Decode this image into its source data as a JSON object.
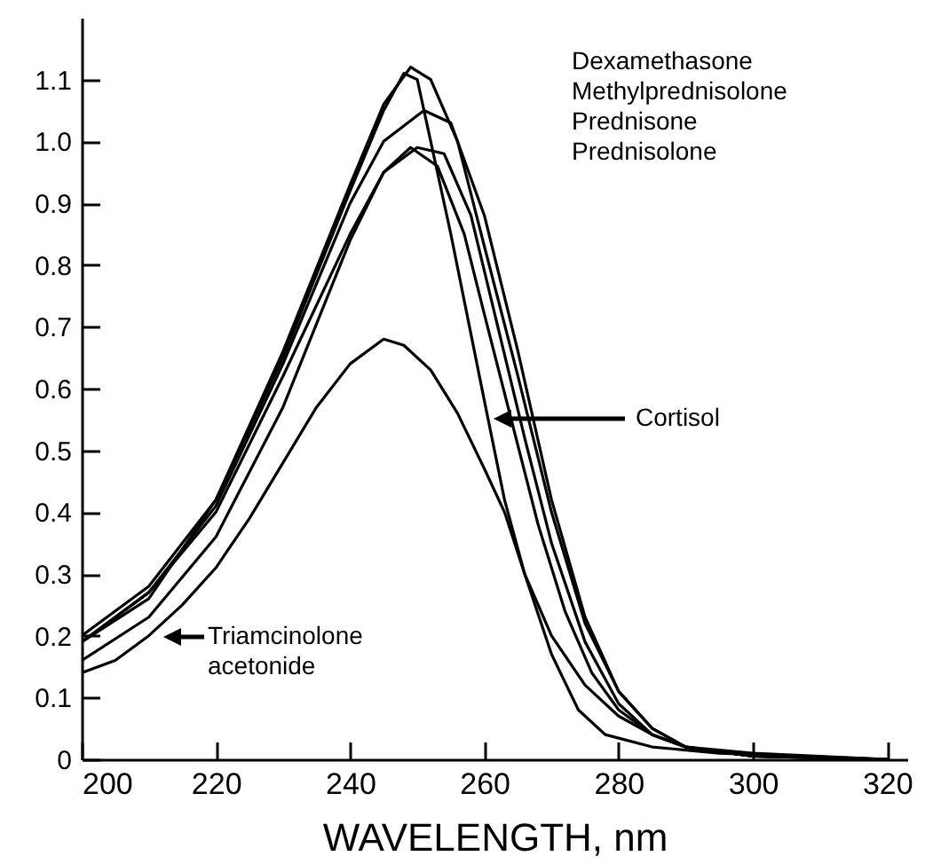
{
  "chart_data": {
    "type": "line",
    "xlabel": "WAVELENGTH, nm",
    "xlim": [
      200,
      323
    ],
    "ylim": [
      0,
      1.2
    ],
    "xticks": [
      200,
      220,
      240,
      260,
      280,
      300,
      320
    ],
    "yticks": [
      0,
      0.1,
      0.2,
      0.3,
      0.4,
      0.5,
      0.6,
      0.7,
      0.8,
      0.9,
      {
        "value": 1,
        "label": "1.0"
      },
      1.1
    ],
    "grid": false,
    "marker": "none",
    "line_style": "solid",
    "annotations": [
      "Dexamethasone Methylprednisolone Prednisone Prednisolone",
      "Cortisol",
      "Triamcinolone acetonide"
    ],
    "series": [
      {
        "color": "#000000",
        "x": [
          200,
          210,
          220,
          230,
          240,
          245,
          248,
          250,
          255,
          260,
          263,
          266,
          270,
          275,
          280,
          285,
          290,
          300,
          320
        ],
        "values": [
          0.19,
          0.26,
          0.42,
          0.65,
          0.92,
          1.05,
          1.11,
          1.1,
          0.85,
          0.58,
          0.42,
          0.3,
          0.2,
          0.12,
          0.07,
          0.04,
          0.02,
          0.005,
          0
        ]
      },
      {
        "color": "#000000",
        "x": [
          200,
          205,
          210,
          215,
          220,
          225,
          230,
          235,
          240,
          245,
          248,
          252,
          256,
          260,
          263,
          266,
          270,
          274,
          278,
          285,
          295,
          320
        ],
        "values": [
          0.14,
          0.16,
          0.2,
          0.25,
          0.31,
          0.39,
          0.48,
          0.57,
          0.64,
          0.68,
          0.67,
          0.63,
          0.56,
          0.47,
          0.4,
          0.3,
          0.17,
          0.08,
          0.04,
          0.02,
          0.01,
          0
        ]
      },
      {
        "color": "#000000",
        "x": [
          200,
          210,
          220,
          230,
          240,
          245,
          249,
          252,
          256,
          260,
          265,
          270,
          275,
          280,
          285,
          290,
          300,
          320
        ],
        "values": [
          0.2,
          0.28,
          0.42,
          0.66,
          0.93,
          1.06,
          1.12,
          1.1,
          1.0,
          0.83,
          0.62,
          0.4,
          0.22,
          0.11,
          0.05,
          0.02,
          0.01,
          0
        ]
      },
      {
        "color": "#000000",
        "x": [
          200,
          210,
          220,
          230,
          240,
          245,
          251,
          255,
          260,
          265,
          270,
          275,
          280,
          285,
          290,
          300,
          320
        ],
        "values": [
          0.19,
          0.27,
          0.41,
          0.64,
          0.9,
          1.0,
          1.05,
          1.03,
          0.88,
          0.66,
          0.42,
          0.23,
          0.11,
          0.05,
          0.02,
          0.005,
          0
        ]
      },
      {
        "color": "#000000",
        "x": [
          200,
          210,
          220,
          230,
          240,
          245,
          250,
          254,
          258,
          262,
          266,
          270,
          275,
          280,
          285,
          290,
          300,
          320
        ],
        "values": [
          0.19,
          0.27,
          0.4,
          0.62,
          0.85,
          0.95,
          0.99,
          0.98,
          0.88,
          0.7,
          0.52,
          0.35,
          0.19,
          0.09,
          0.04,
          0.02,
          0.005,
          0
        ]
      },
      {
        "color": "#000000",
        "x": [
          200,
          210,
          220,
          230,
          240,
          245,
          249,
          253,
          257,
          260,
          264,
          268,
          272,
          276,
          280,
          285,
          290,
          300,
          320
        ],
        "values": [
          0.16,
          0.23,
          0.36,
          0.57,
          0.84,
          0.95,
          0.99,
          0.96,
          0.85,
          0.72,
          0.55,
          0.38,
          0.24,
          0.14,
          0.08,
          0.04,
          0.02,
          0.005,
          0
        ]
      }
    ]
  }
}
